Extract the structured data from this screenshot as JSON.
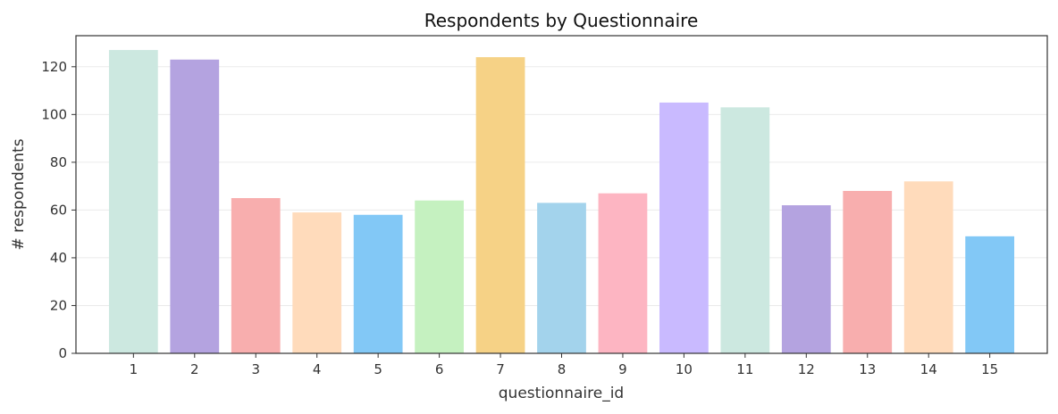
{
  "chart_data": {
    "type": "bar",
    "title": "Respondents by Questionnaire",
    "xlabel": "questionnaire_id",
    "ylabel": "# respondents",
    "categories": [
      "1",
      "2",
      "3",
      "4",
      "5",
      "6",
      "7",
      "8",
      "9",
      "10",
      "11",
      "12",
      "13",
      "14",
      "15"
    ],
    "values": [
      127,
      123,
      65,
      59,
      58,
      64,
      124,
      63,
      67,
      105,
      103,
      62,
      68,
      72,
      49
    ],
    "colors": [
      "#cce8e0",
      "#b4a3e0",
      "#f8aeae",
      "#ffdbbb",
      "#82c8f6",
      "#c5f1c0",
      "#f6d286",
      "#a3d3ec",
      "#fdb5c2",
      "#c9baff",
      "#cce8e0",
      "#b4a3e0",
      "#f8aeae",
      "#ffdbbb",
      "#82c8f6"
    ],
    "ylim": [
      0,
      133
    ],
    "yticks": [
      0,
      20,
      40,
      60,
      80,
      100,
      120
    ],
    "grid": true,
    "legend": "none"
  }
}
